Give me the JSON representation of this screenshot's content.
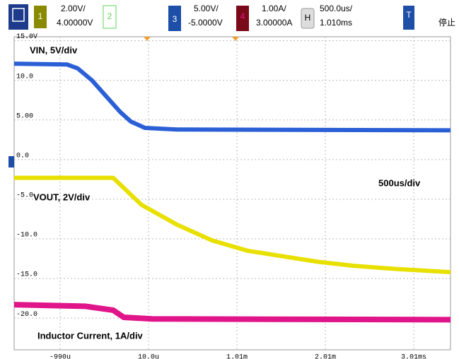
{
  "toolbar": {
    "channels": [
      {
        "id": "1",
        "scale": "2.00V/",
        "offset": "4.00000V"
      },
      {
        "id": "2"
      },
      {
        "id": "3",
        "scale": "5.00V/",
        "offset": "-5.0000V"
      },
      {
        "id": "4",
        "scale": "1.00A/",
        "offset": "3.00000A"
      }
    ],
    "timebase": {
      "id": "H",
      "scale": "500.0us/",
      "delay": "1.010ms"
    },
    "trigger": {
      "id": "T",
      "status": "停止"
    }
  },
  "chart_data": {
    "type": "line",
    "annotations": [
      "VIN, 5V/div",
      "VOUT, 2V/div",
      "500us/div",
      "Inductor Current, 1A/div"
    ],
    "xlim": [
      -1.51,
      3.426
    ],
    "ylim": [
      -24,
      15.5
    ],
    "xticks": [
      {
        "value": -0.99,
        "label": "-990u"
      },
      {
        "value": 0.01,
        "label": "10.0u"
      },
      {
        "value": 1.01,
        "label": "1.01m"
      },
      {
        "value": 2.01,
        "label": "2.01m"
      },
      {
        "value": 3.01,
        "label": "3.01ms"
      }
    ],
    "yticks": [
      {
        "value": 15,
        "label": "15.0V"
      },
      {
        "value": 10,
        "label": "10.0"
      },
      {
        "value": 5,
        "label": "5.00"
      },
      {
        "value": 0,
        "label": "0.0"
      },
      {
        "value": -5,
        "label": "-5.0"
      },
      {
        "value": -10,
        "label": "-10.0"
      },
      {
        "value": -15,
        "label": "-15.0"
      },
      {
        "value": -20,
        "label": "-20.0"
      }
    ],
    "grid": true,
    "series": [
      {
        "color": "#2b5fd6",
        "x": [
          -1.51,
          -0.91,
          -0.79,
          -0.63,
          -0.47,
          -0.31,
          -0.19,
          -0.03,
          0.33,
          3.426
        ],
        "values": [
          12.1,
          12.0,
          11.5,
          10.0,
          8.0,
          6.0,
          4.8,
          4.0,
          3.8,
          3.7
        ]
      },
      {
        "color": "#e8e000",
        "x": [
          -1.51,
          -0.39,
          -0.07,
          0.33,
          0.73,
          1.13,
          1.53,
          1.93,
          2.33,
          2.81,
          3.426
        ],
        "values": [
          -2.3,
          -2.3,
          -5.7,
          -8.2,
          -10.2,
          -11.5,
          -12.2,
          -12.9,
          -13.4,
          -13.8,
          -14.2
        ]
      },
      {
        "color": "#e0158a",
        "x": [
          -1.51,
          -0.71,
          -0.39,
          -0.27,
          0.05,
          3.426
        ],
        "values": [
          -18.3,
          -18.5,
          -19.0,
          -19.9,
          -20.1,
          -20.2
        ]
      }
    ]
  }
}
